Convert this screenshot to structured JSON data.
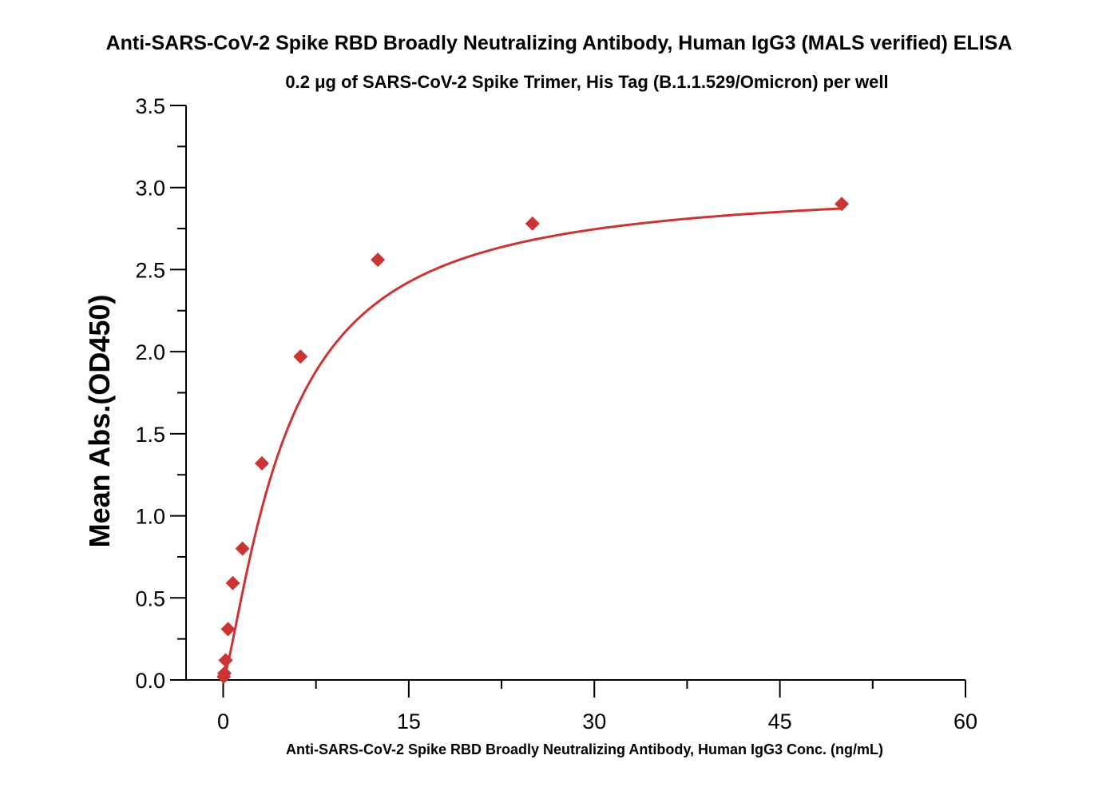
{
  "chart_data": {
    "type": "scatter",
    "title": "Anti-SARS-CoV-2 Spike RBD Broadly Neutralizing Antibody, Human IgG3 (MALS verified) ELISA",
    "subtitle": "0.2 μg of SARS-CoV-2 Spike Trimer, His Tag (B.1.1.529/Omicron)  per well",
    "xlabel": "Anti-SARS-CoV-2 Spike RBD Broadly Neutralizing Antibody, Human IgG3 Conc. (ng/mL)",
    "ylabel": "Mean Abs.(OD450)",
    "xlim": [
      -3,
      60
    ],
    "ylim": [
      0,
      3.5
    ],
    "x_ticks": [
      "0",
      "15",
      "30",
      "45",
      "60"
    ],
    "y_ticks": [
      "0.0",
      "0.5",
      "1.0",
      "1.5",
      "2.0",
      "2.5",
      "3.0",
      "3.5"
    ],
    "grid": false,
    "series": [
      {
        "x": [
          0.05,
          0.1,
          0.2,
          0.39,
          0.78,
          1.56,
          3.13,
          6.25,
          12.5,
          25,
          50
        ],
        "y": [
          0.02,
          0.04,
          0.12,
          0.31,
          0.59,
          0.8,
          1.32,
          1.97,
          2.56,
          2.78,
          2.9
        ],
        "color": "#cc3333",
        "marker": "diamond",
        "fit_curve": true
      }
    ]
  }
}
